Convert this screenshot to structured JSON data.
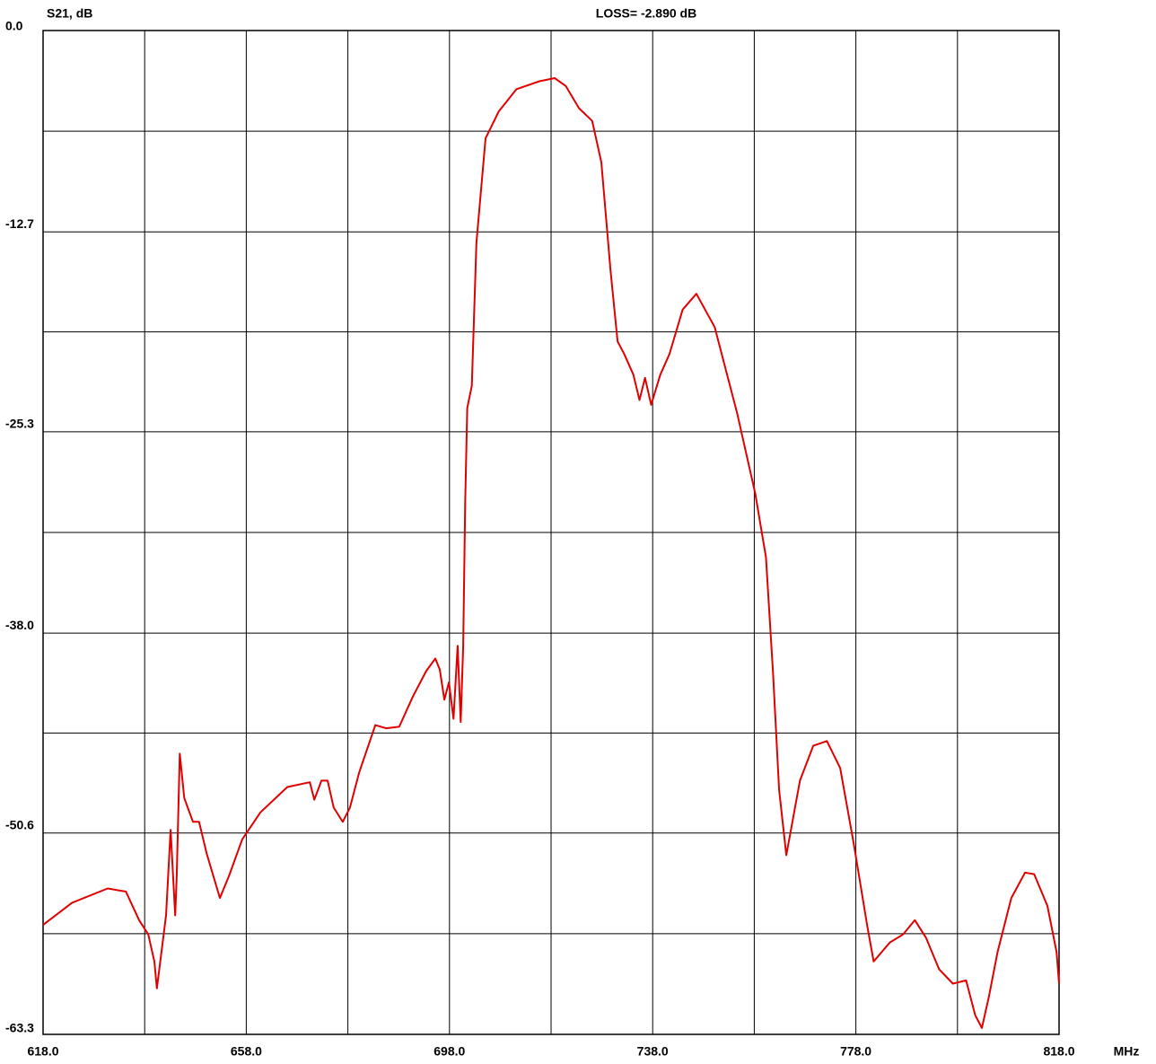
{
  "chart_data": {
    "type": "line",
    "title": "LOSS=  -2.890 dB",
    "y_label": "S21, dB",
    "x_label": "MHz",
    "color": "#e00000",
    "grid": true,
    "xlim": [
      618,
      818
    ],
    "ylim": [
      -63.3,
      0
    ],
    "xticks": [
      {
        "value": 618,
        "label": "618.0"
      },
      {
        "value": 658,
        "label": "658.0"
      },
      {
        "value": 698,
        "label": "698.0"
      },
      {
        "value": 738,
        "label": "738.0"
      },
      {
        "value": 778,
        "label": "778.0"
      },
      {
        "value": 818,
        "label": "818.0"
      }
    ],
    "yticks": [
      {
        "value": 0,
        "label": "0.0"
      },
      -12.7,
      -25.3,
      {
        "value": -38,
        "label": "-38.0"
      },
      -50.6,
      -63.3
    ],
    "x": [
      618,
      623.7,
      630.7,
      634.3,
      636.9,
      638.7,
      639.9,
      640.4,
      641.3,
      642.2,
      643.1,
      644.0,
      644.3,
      644.9,
      645.8,
      647.5,
      648.7,
      650.2,
      652.8,
      654.6,
      657.2,
      660.8,
      666.1,
      670.5,
      671.4,
      672.8,
      674.0,
      675.2,
      677.0,
      678.4,
      680.2,
      683.4,
      685.5,
      688.1,
      690.8,
      693.4,
      695.2,
      696.1,
      697.0,
      697.9,
      698.8,
      699.6,
      700.2,
      700.7,
      701.1,
      701.5,
      702.4,
      703.3,
      705.1,
      707.7,
      711.2,
      715.7,
      718.7,
      720.9,
      723.5,
      726.1,
      727.9,
      729.7,
      731.1,
      732.4,
      734.2,
      735.4,
      736.5,
      737.7,
      739.5,
      741.3,
      743.9,
      746.6,
      750.2,
      754.6,
      758.2,
      760.3,
      761.7,
      762.9,
      764.3,
      767.0,
      769.6,
      772.3,
      774.9,
      777.6,
      780.2,
      781.5,
      784.7,
      787.3,
      789.6,
      791.8,
      794.4,
      797.1,
      799.7,
      801.5,
      802.8,
      804.2,
      805.9,
      808.6,
      811.3,
      813.1,
      815.7,
      817.5,
      818.0
    ],
    "values": [
      -56.4,
      -55.0,
      -54.1,
      -54.3,
      -56.1,
      -57.0,
      -58.7,
      -60.4,
      -58.1,
      -55.8,
      -50.4,
      -55.8,
      -53.3,
      -45.6,
      -48.4,
      -49.9,
      -49.9,
      -51.9,
      -54.7,
      -53.3,
      -51.0,
      -49.3,
      -47.7,
      -47.4,
      -48.5,
      -47.3,
      -47.3,
      -49.0,
      -49.9,
      -49.0,
      -46.8,
      -43.8,
      -44.0,
      -43.9,
      -42.0,
      -40.4,
      -39.6,
      -40.3,
      -42.2,
      -41.1,
      -43.4,
      -38.8,
      -43.6,
      -38.8,
      -29.8,
      -23.8,
      -22.4,
      -13.4,
      -6.8,
      -5.1,
      -3.7,
      -3.2,
      -3.0,
      -3.5,
      -4.9,
      -5.7,
      -8.3,
      -15.1,
      -19.6,
      -20.4,
      -21.7,
      -23.3,
      -21.9,
      -23.6,
      -21.7,
      -20.4,
      -17.6,
      -16.6,
      -18.7,
      -24.1,
      -29.2,
      -33.2,
      -40.5,
      -47.9,
      -52.0,
      -47.3,
      -45.1,
      -44.8,
      -46.5,
      -51.3,
      -56.4,
      -58.7,
      -57.5,
      -57.0,
      -56.1,
      -57.2,
      -59.2,
      -60.1,
      -59.9,
      -62.1,
      -62.9,
      -60.9,
      -58.1,
      -54.7,
      -53.1,
      -53.2,
      -55.2,
      -58.1,
      -60.1
    ]
  }
}
